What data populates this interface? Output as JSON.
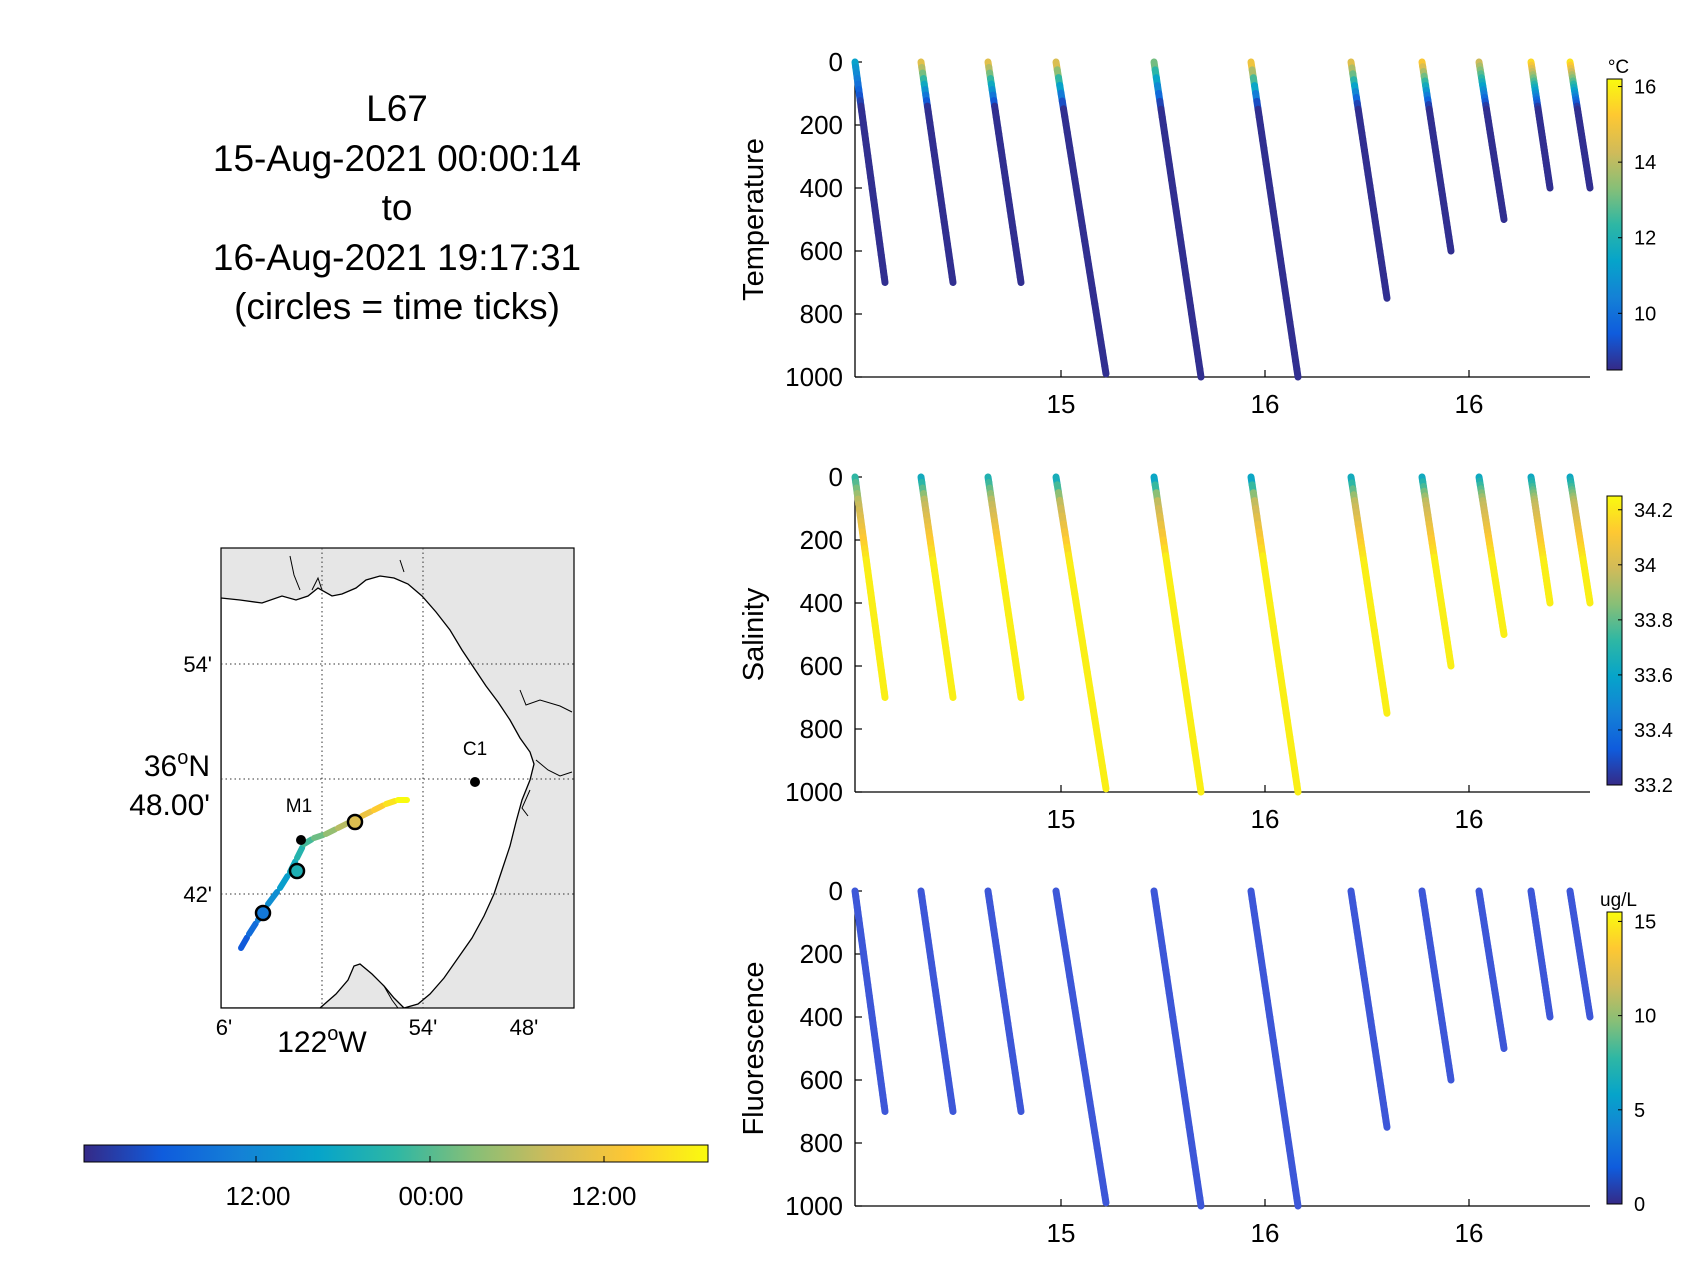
{
  "colors": {
    "parula": [
      "#352a87",
      "#0f5cdd",
      "#1481d6",
      "#06a4ca",
      "#2eb7a4",
      "#87bf77",
      "#d1bb59",
      "#fec832",
      "#f9fb0e"
    ],
    "deep_profile": "#3b2d97",
    "track_blue": "#3d57d8",
    "land": "#e6e6e6",
    "station": "#000000"
  },
  "header": {
    "line1": "L67",
    "line2": "15-Aug-2021 00:00:14",
    "line3": "to",
    "line4": "16-Aug-2021 19:17:31",
    "line5": "(circles = time ticks)"
  },
  "map": {
    "lat_labels": [
      "54'",
      "36°N 48.00'",
      "42'"
    ],
    "lat_label_main_a": "36",
    "lat_label_main_sup": "o",
    "lat_label_main_b": "N",
    "lat_label_main_minutes": "48.00'",
    "lat_label_top": "54'",
    "lat_label_bottom": "42'",
    "lon_label_left": "6'",
    "lon_label_main_a": "122",
    "lon_label_main_sup": "o",
    "lon_label_main_b": "W",
    "lon_label_mid": "54'",
    "lon_label_right": "48'",
    "stations": [
      {
        "name": "M1"
      },
      {
        "name": "C1"
      }
    ]
  },
  "time_colorbar": {
    "tick_labels": [
      "12:00",
      "00:00",
      "12:00"
    ]
  },
  "chart_data": [
    {
      "type": "scatter",
      "title": "",
      "ylabel": "Temperature",
      "xlabel": "",
      "x_tick_labels": [
        "15",
        "16",
        "16"
      ],
      "y_ticks": [
        0,
        200,
        400,
        600,
        800,
        1000
      ],
      "ylim": [
        1000,
        0
      ],
      "y_reversed": true,
      "colorbar": {
        "unit": "°C",
        "ticks": [
          10,
          12,
          14,
          16
        ],
        "range": [
          8.5,
          16.2
        ]
      },
      "profiles": [
        {
          "max_depth": 700,
          "surface_value": 11.5
        },
        {
          "max_depth": 700,
          "surface_value": 15.0
        },
        {
          "max_depth": 700,
          "surface_value": 15.0
        },
        {
          "max_depth": 990,
          "surface_value": 15.0
        },
        {
          "max_depth": 1000,
          "surface_value": 13.5
        },
        {
          "max_depth": 1000,
          "surface_value": 15.5
        },
        {
          "max_depth": 750,
          "surface_value": 15.0
        },
        {
          "max_depth": 600,
          "surface_value": 15.5
        },
        {
          "max_depth": 500,
          "surface_value": 14.5
        },
        {
          "max_depth": 400,
          "surface_value": 15.8
        },
        {
          "max_depth": 400,
          "surface_value": 16.0
        }
      ]
    },
    {
      "type": "scatter",
      "title": "",
      "ylabel": "Salinity",
      "xlabel": "",
      "x_tick_labels": [
        "15",
        "16",
        "16"
      ],
      "y_ticks": [
        0,
        200,
        400,
        600,
        800,
        1000
      ],
      "ylim": [
        1000,
        0
      ],
      "y_reversed": true,
      "colorbar": {
        "unit": "",
        "ticks": [
          33.2,
          33.4,
          33.6,
          33.8,
          34,
          34.2
        ],
        "range": [
          33.2,
          34.25
        ]
      },
      "profiles": [
        {
          "max_depth": 700,
          "surface_value": 33.7
        },
        {
          "max_depth": 700,
          "surface_value": 33.6
        },
        {
          "max_depth": 700,
          "surface_value": 33.65
        },
        {
          "max_depth": 990,
          "surface_value": 33.6
        },
        {
          "max_depth": 1000,
          "surface_value": 33.55
        },
        {
          "max_depth": 1000,
          "surface_value": 33.55
        },
        {
          "max_depth": 750,
          "surface_value": 33.6
        },
        {
          "max_depth": 600,
          "surface_value": 33.6
        },
        {
          "max_depth": 500,
          "surface_value": 33.6
        },
        {
          "max_depth": 400,
          "surface_value": 33.6
        },
        {
          "max_depth": 400,
          "surface_value": 33.6
        }
      ]
    },
    {
      "type": "scatter",
      "title": "",
      "ylabel": "Fluorescence",
      "xlabel": "",
      "x_tick_labels": [
        "15",
        "16",
        "16"
      ],
      "y_ticks": [
        0,
        200,
        400,
        600,
        800,
        1000
      ],
      "ylim": [
        1000,
        0
      ],
      "y_reversed": true,
      "colorbar": {
        "unit": "ug/L",
        "ticks": [
          0,
          5,
          10,
          15
        ],
        "range": [
          0,
          15.5
        ]
      },
      "profiles": [
        {
          "max_depth": 700
        },
        {
          "max_depth": 700
        },
        {
          "max_depth": 700
        },
        {
          "max_depth": 990
        },
        {
          "max_depth": 1000
        },
        {
          "max_depth": 1000
        },
        {
          "max_depth": 750
        },
        {
          "max_depth": 600
        },
        {
          "max_depth": 500
        },
        {
          "max_depth": 400
        },
        {
          "max_depth": 400
        }
      ]
    }
  ]
}
